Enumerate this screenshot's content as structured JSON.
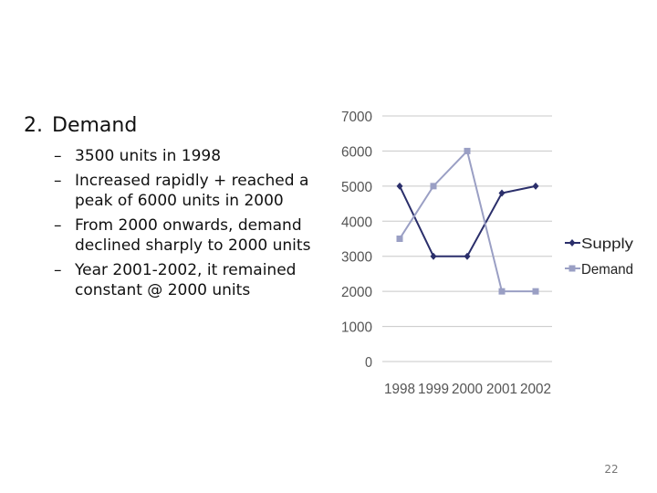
{
  "slide": {
    "section_number": "2.",
    "section_title": "Demand",
    "bullets": [
      "3500 units in 1998",
      "Increased rapidly + reached a peak of 6000 units in 2000",
      "From 2000 onwards, demand declined sharply to 2000 units",
      "Year 2001-2002, it remained constant @ 2000 units"
    ],
    "bullet_marker": "–",
    "page_number": "22"
  },
  "chart_data": {
    "type": "line",
    "title": "",
    "xlabel": "",
    "ylabel": "",
    "categories": [
      "1998",
      "1999",
      "2000",
      "2001",
      "2002"
    ],
    "ylim": [
      0,
      7000
    ],
    "yticks": [
      0,
      1000,
      2000,
      3000,
      4000,
      5000,
      6000,
      7000
    ],
    "grid": true,
    "legend_position": "right",
    "series": [
      {
        "name": "Supply",
        "values": [
          5000,
          3000,
          3000,
          4800,
          5000
        ],
        "color": "#2b2f6b",
        "marker": "diamond"
      },
      {
        "name": "Demand",
        "values": [
          3500,
          5000,
          6000,
          2000,
          2000
        ],
        "color": "#9a9fc4",
        "marker": "square"
      }
    ]
  }
}
